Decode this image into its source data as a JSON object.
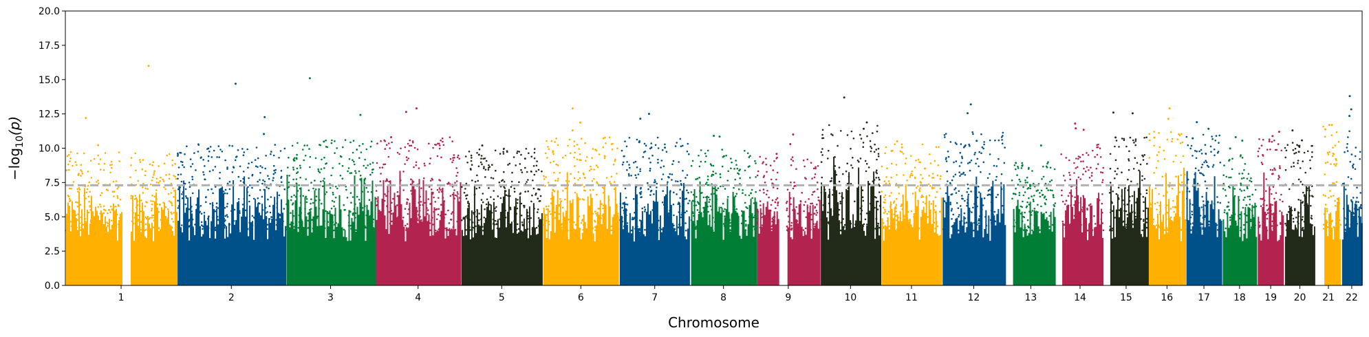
{
  "chart_data": {
    "type": "scatter",
    "title": "",
    "xlabel": "Chromosome",
    "ylabel_parts": {
      "pre": "−log",
      "sub": "10",
      "post": "(p)"
    },
    "ylim": [
      0,
      20
    ],
    "yticks": [
      "0.0",
      "2.5",
      "5.0",
      "7.5",
      "10.0",
      "12.5",
      "15.0",
      "17.5",
      "20.0"
    ],
    "threshold": {
      "value": 7.3,
      "color": "#b0b0b0",
      "style": "dashed"
    },
    "grid": false,
    "palette": [
      "#ffb000",
      "#00508a",
      "#007e35",
      "#b2244f",
      "#222b1a"
    ],
    "chromosomes": [
      {
        "label": "1",
        "span": [
          0.0,
          0.086
        ],
        "gaps": [
          [
            0.043,
            0.05
          ]
        ],
        "max": 16.0,
        "dense_top": 9.0
      },
      {
        "label": "2",
        "span": [
          0.086,
          0.17
        ],
        "gaps": [],
        "max": 14.7,
        "dense_top": 9.5
      },
      {
        "label": "3",
        "span": [
          0.17,
          0.239
        ],
        "gaps": [],
        "max": 15.1,
        "dense_top": 9.8
      },
      {
        "label": "4",
        "span": [
          0.239,
          0.305
        ],
        "gaps": [],
        "max": 12.9,
        "dense_top": 10.0
      },
      {
        "label": "5",
        "span": [
          0.305,
          0.368
        ],
        "gaps": [],
        "max": 10.2,
        "dense_top": 9.2
      },
      {
        "label": "6",
        "span": [
          0.368,
          0.427
        ],
        "gaps": [],
        "max": 12.9,
        "dense_top": 10.0
      },
      {
        "label": "7",
        "span": [
          0.427,
          0.482
        ],
        "gaps": [],
        "max": 12.5,
        "dense_top": 10.0
      },
      {
        "label": "8",
        "span": [
          0.482,
          0.533
        ],
        "gaps": [],
        "max": 10.9,
        "dense_top": 9.2
      },
      {
        "label": "9",
        "span": [
          0.533,
          0.582
        ],
        "gaps": [
          [
            0.55,
            0.556
          ]
        ],
        "max": 11.0,
        "dense_top": 8.6
      },
      {
        "label": "10",
        "span": [
          0.582,
          0.629
        ],
        "gaps": [],
        "max": 13.7,
        "dense_top": 11.0
      },
      {
        "label": "11",
        "span": [
          0.629,
          0.676
        ],
        "gaps": [],
        "max": 10.5,
        "dense_top": 9.6
      },
      {
        "label": "12",
        "span": [
          0.676,
          0.725
        ],
        "gaps": [],
        "max": 13.2,
        "dense_top": 10.5
      },
      {
        "label": "13",
        "span": [
          0.725,
          0.764
        ],
        "gaps": [
          [
            0.725,
            0.73
          ]
        ],
        "max": 10.2,
        "dense_top": 8.2
      },
      {
        "label": "14",
        "span": [
          0.764,
          0.801
        ],
        "gaps": [
          [
            0.764,
            0.768
          ]
        ],
        "max": 11.8,
        "dense_top": 9.5
      },
      {
        "label": "15",
        "span": [
          0.801,
          0.835
        ],
        "gaps": [
          [
            0.801,
            0.805
          ]
        ],
        "max": 12.6,
        "dense_top": 10.0
      },
      {
        "label": "16",
        "span": [
          0.835,
          0.864
        ],
        "gaps": [],
        "max": 12.9,
        "dense_top": 10.5
      },
      {
        "label": "17",
        "span": [
          0.864,
          0.892
        ],
        "gaps": [],
        "max": 11.9,
        "dense_top": 10.2
      },
      {
        "label": "18",
        "span": [
          0.892,
          0.919
        ],
        "gaps": [],
        "max": 10.8,
        "dense_top": 8.8
      },
      {
        "label": "19",
        "span": [
          0.919,
          0.94
        ],
        "gaps": [],
        "max": 11.2,
        "dense_top": 10.0
      },
      {
        "label": "20",
        "span": [
          0.94,
          0.964
        ],
        "gaps": [],
        "max": 11.3,
        "dense_top": 9.6
      },
      {
        "label": "21",
        "span": [
          0.964,
          0.984
        ],
        "gaps": [
          [
            0.964,
            0.97
          ]
        ],
        "max": 11.7,
        "dense_top": 11.0
      },
      {
        "label": "22",
        "span": [
          0.984,
          1.0
        ],
        "gaps": [],
        "max": 13.8,
        "dense_top": 10.5
      }
    ]
  }
}
